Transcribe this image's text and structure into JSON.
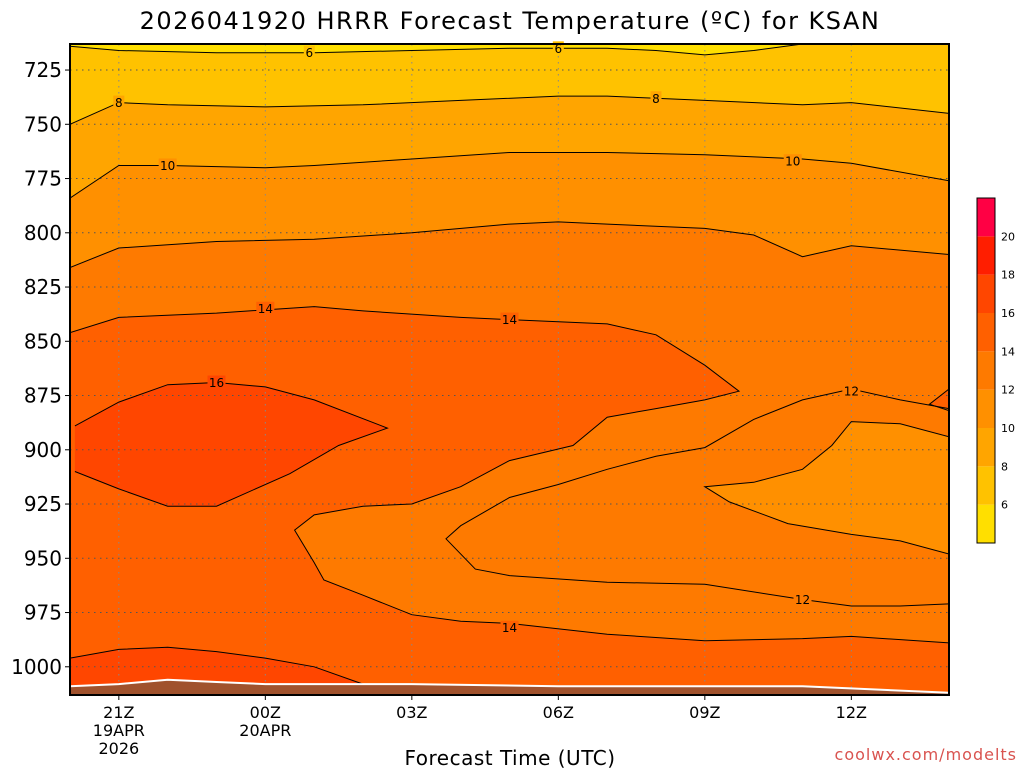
{
  "title": "2026041920 HRRR Forecast Temperature (ºC) for KSAN",
  "xlabel": "Forecast Time (UTC)",
  "credit": "coolwx.com/modelts",
  "colors": {
    "frame": "#000000",
    "terrain": "#a0522d",
    "grid": "#555555"
  },
  "chart_data": {
    "type": "heatmap",
    "title": "2026041920 HRRR Forecast Temperature (ºC) for KSAN",
    "xlabel": "Forecast Time (UTC)",
    "ylabel": "",
    "y_axis": {
      "quantity": "pressure (hPa)",
      "inverted": true,
      "range": [
        1013,
        713
      ],
      "ticks": [
        725,
        750,
        775,
        800,
        825,
        850,
        875,
        900,
        925,
        950,
        975,
        1000
      ]
    },
    "x_axis": {
      "quantity": "forecast hour",
      "range": [
        20,
        38
      ],
      "ticks": [
        {
          "hour": 21,
          "lines": [
            "21Z",
            "19APR",
            "2026"
          ]
        },
        {
          "hour": 24,
          "lines": [
            "00Z",
            "20APR"
          ]
        },
        {
          "hour": 27,
          "lines": [
            "03Z"
          ]
        },
        {
          "hour": 30,
          "lines": [
            "06Z"
          ]
        },
        {
          "hour": 33,
          "lines": [
            "09Z"
          ]
        },
        {
          "hour": 36,
          "lines": [
            "12Z"
          ]
        }
      ]
    },
    "grid": true,
    "colorbar": {
      "placement": "right",
      "levels": [
        {
          "min": 4,
          "max": 6,
          "color": "#ffdf00"
        },
        {
          "min": 6,
          "max": 8,
          "color": "#ffc200"
        },
        {
          "min": 8,
          "max": 10,
          "color": "#ffa500"
        },
        {
          "min": 10,
          "max": 12,
          "color": "#ff9000"
        },
        {
          "min": 12,
          "max": 14,
          "color": "#fe7a00"
        },
        {
          "min": 14,
          "max": 16,
          "color": "#ff6000"
        },
        {
          "min": 16,
          "max": 18,
          "color": "#ff4600"
        },
        {
          "min": 18,
          "max": 20,
          "color": "#ff1e00"
        },
        {
          "min": 20,
          "max": 22,
          "color": "#ff0044"
        }
      ],
      "tick_labels": [
        "6",
        "8",
        "10",
        "12",
        "14",
        "16",
        "18",
        "20"
      ]
    },
    "contours": [
      {
        "level": 6,
        "points": [
          [
            20,
            714
          ],
          [
            21,
            716
          ],
          [
            23,
            717
          ],
          [
            25,
            717
          ],
          [
            27,
            716
          ],
          [
            29,
            715
          ],
          [
            30,
            715
          ],
          [
            31,
            715
          ],
          [
            32,
            716
          ],
          [
            33,
            718
          ],
          [
            34,
            716
          ],
          [
            35,
            713
          ],
          [
            36,
            713
          ],
          [
            38,
            713
          ]
        ]
      },
      {
        "level": 8,
        "points": [
          [
            20,
            750
          ],
          [
            21,
            740
          ],
          [
            22,
            741
          ],
          [
            24,
            742
          ],
          [
            26,
            741
          ],
          [
            28,
            739
          ],
          [
            30,
            737
          ],
          [
            31,
            737
          ],
          [
            33,
            739
          ],
          [
            35,
            741
          ],
          [
            36,
            740
          ],
          [
            38,
            745
          ]
        ]
      },
      {
        "level": 10,
        "points": [
          [
            20,
            784
          ],
          [
            21,
            769
          ],
          [
            22,
            769
          ],
          [
            24,
            770
          ],
          [
            25,
            769
          ],
          [
            27,
            766
          ],
          [
            29,
            763
          ],
          [
            30,
            763
          ],
          [
            31,
            763
          ],
          [
            33,
            764
          ],
          [
            35,
            766
          ],
          [
            36,
            768
          ],
          [
            38,
            776
          ]
        ]
      },
      {
        "level": 12,
        "points": [
          [
            20,
            816
          ],
          [
            21,
            807
          ],
          [
            23,
            804
          ],
          [
            25,
            803
          ],
          [
            27,
            800
          ],
          [
            29,
            796
          ],
          [
            30,
            795
          ],
          [
            31,
            796
          ],
          [
            33,
            798
          ],
          [
            34,
            801
          ],
          [
            35,
            811
          ],
          [
            36,
            806
          ],
          [
            38,
            810
          ]
        ]
      },
      {
        "level": 14,
        "points": [
          [
            20,
            846
          ],
          [
            21,
            839
          ],
          [
            23,
            837
          ],
          [
            25,
            834
          ],
          [
            26,
            836
          ],
          [
            28,
            839
          ],
          [
            29,
            840
          ],
          [
            31,
            842
          ],
          [
            32,
            847
          ],
          [
            33,
            861
          ],
          [
            33.7,
            873
          ],
          [
            33,
            877
          ],
          [
            32,
            881
          ],
          [
            31,
            885
          ],
          [
            30.3,
            898
          ],
          [
            29,
            905
          ],
          [
            28,
            917
          ],
          [
            27,
            925
          ],
          [
            26,
            926
          ],
          [
            25,
            930
          ],
          [
            24.6,
            937
          ],
          [
            25,
            952
          ],
          [
            25.2,
            960
          ],
          [
            26,
            967
          ],
          [
            27,
            976
          ],
          [
            28,
            979
          ],
          [
            29,
            980
          ],
          [
            31,
            985
          ],
          [
            33,
            988
          ],
          [
            35,
            987
          ],
          [
            36,
            986
          ],
          [
            38,
            989
          ]
        ]
      },
      {
        "level": 14,
        "points": [
          [
            38,
            872
          ],
          [
            37.6,
            879
          ],
          [
            38,
            882
          ]
        ]
      },
      {
        "level": 16,
        "points": [
          [
            20.1,
            889
          ],
          [
            21,
            878
          ],
          [
            22,
            870
          ],
          [
            23,
            869
          ],
          [
            24,
            871
          ],
          [
            25,
            877
          ],
          [
            26.5,
            890
          ],
          [
            25.5,
            898
          ],
          [
            24.5,
            911
          ],
          [
            23,
            926
          ],
          [
            22,
            926
          ],
          [
            21,
            918
          ],
          [
            20.1,
            910
          ]
        ]
      },
      {
        "level": 16,
        "points": [
          [
            20,
            996
          ],
          [
            21,
            992
          ],
          [
            22,
            991
          ],
          [
            23,
            993
          ],
          [
            24,
            996
          ],
          [
            25,
            1000
          ],
          [
            26,
            1008
          ],
          [
            26.5,
            1011
          ]
        ]
      },
      {
        "level": 12,
        "points": [
          [
            38,
            881
          ],
          [
            37,
            877
          ],
          [
            36,
            872
          ],
          [
            35,
            877
          ],
          [
            34,
            886
          ],
          [
            33,
            899
          ],
          [
            32,
            903
          ],
          [
            31,
            909
          ],
          [
            30,
            916
          ],
          [
            29,
            922
          ],
          [
            28,
            935
          ],
          [
            27.7,
            941
          ],
          [
            28.3,
            955
          ],
          [
            29,
            958
          ],
          [
            31,
            961
          ],
          [
            33,
            962
          ],
          [
            35,
            969
          ],
          [
            36,
            972
          ],
          [
            37,
            972
          ],
          [
            38,
            971
          ]
        ]
      },
      {
        "level": 10,
        "points": [
          [
            38,
            894
          ],
          [
            37,
            888
          ],
          [
            36,
            887
          ],
          [
            35.6,
            898
          ],
          [
            35,
            909
          ],
          [
            34,
            915
          ],
          [
            33,
            917
          ],
          [
            33.5,
            924
          ],
          [
            34.7,
            934
          ],
          [
            36,
            939
          ],
          [
            37,
            942
          ],
          [
            38,
            948
          ]
        ]
      }
    ],
    "contour_labels": [
      {
        "text": "6",
        "x": 24.9,
        "y": 717
      },
      {
        "text": "6",
        "x": 30,
        "y": 715
      },
      {
        "text": "8",
        "x": 21,
        "y": 740
      },
      {
        "text": "8",
        "x": 32,
        "y": 738
      },
      {
        "text": "10",
        "x": 22,
        "y": 769
      },
      {
        "text": "10",
        "x": 34.8,
        "y": 767
      },
      {
        "text": "14",
        "x": 24,
        "y": 835
      },
      {
        "text": "14",
        "x": 29,
        "y": 840
      },
      {
        "text": "16",
        "x": 23,
        "y": 869
      },
      {
        "text": "12",
        "x": 36,
        "y": 873
      },
      {
        "text": "12",
        "x": 35,
        "y": 969
      },
      {
        "text": "14",
        "x": 29,
        "y": 982
      }
    ],
    "terrain": [
      [
        20,
        1009
      ],
      [
        21,
        1008
      ],
      [
        22,
        1006
      ],
      [
        23,
        1007
      ],
      [
        24,
        1008
      ],
      [
        27,
        1008
      ],
      [
        30,
        1009
      ],
      [
        33,
        1009
      ],
      [
        35,
        1009
      ],
      [
        38,
        1012
      ]
    ]
  }
}
